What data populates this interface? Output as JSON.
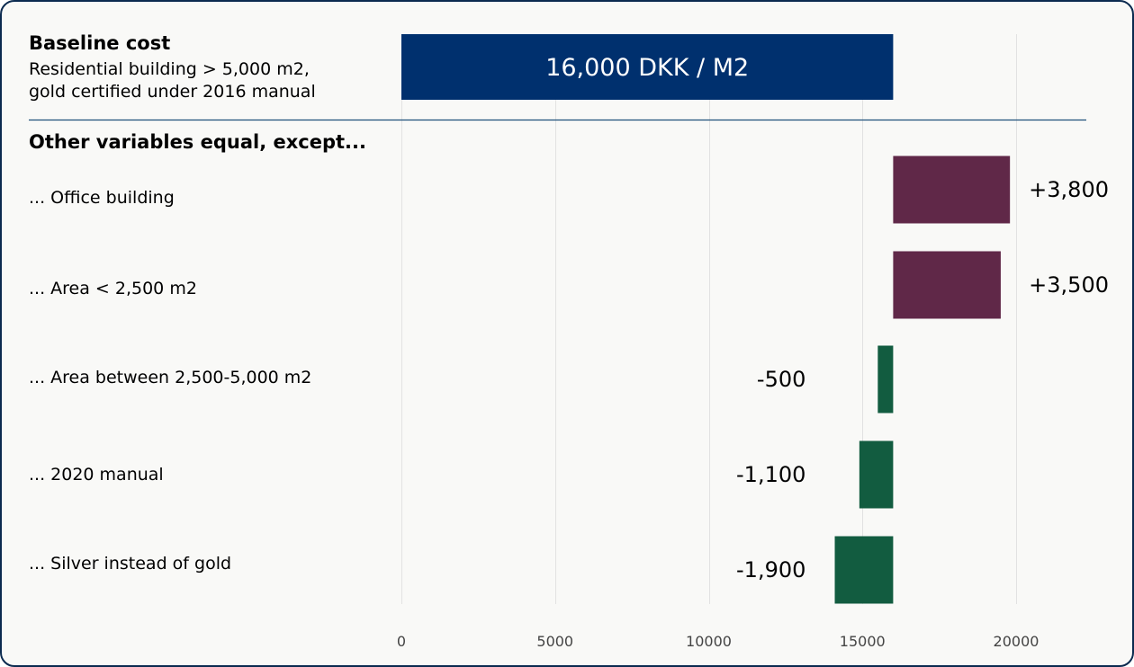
{
  "chart_data": {
    "type": "bar",
    "orientation": "horizontal",
    "subtype": "waterfall-delta",
    "baseline": {
      "title": "Baseline cost",
      "subtitle_lines": [
        "Residential building > 5,000 m2,",
        "gold certified under 2016 manual"
      ],
      "value": 16000,
      "label": "16,000 DKK / M2",
      "color": "#00306e"
    },
    "section_title": "Other variables equal, except...",
    "categories": [
      "... Office building",
      "... Area < 2,500 m2",
      "... Area between 2,500-5,000 m2",
      "... 2020 manual",
      "... Silver instead of gold"
    ],
    "values": [
      3800,
      3500,
      -500,
      -1100,
      -1900
    ],
    "value_labels": [
      "+3,800",
      "+3,500",
      "-500",
      "-1,100",
      "-1,900"
    ],
    "colors": {
      "positive": "#602848",
      "negative": "#125c40",
      "divider": "#1e4f7a"
    },
    "xlim": [
      0,
      22000
    ],
    "xticks": [
      0,
      5000,
      10000,
      15000,
      20000
    ],
    "grid": true,
    "xlabel": "",
    "ylabel": ""
  }
}
